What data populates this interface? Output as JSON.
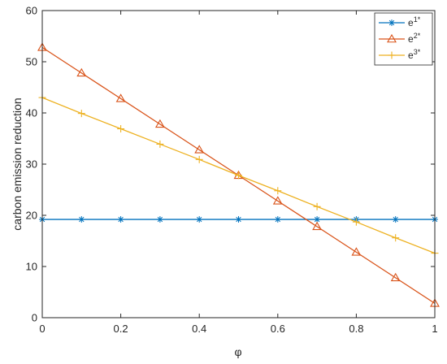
{
  "chart_data": {
    "type": "line",
    "xlabel": "φ",
    "ylabel": "carbon emission reduction",
    "xlim": [
      0,
      1
    ],
    "ylim": [
      0,
      60
    ],
    "xticks": [
      "0",
      "0.2",
      "0.4",
      "0.6",
      "0.8",
      "1"
    ],
    "yticks": [
      "0",
      "10",
      "20",
      "30",
      "40",
      "50",
      "60"
    ],
    "grid": false,
    "legend_position": "top-right",
    "x": [
      0,
      0.1,
      0.2,
      0.3,
      0.4,
      0.5,
      0.6,
      0.7,
      0.8,
      0.9,
      1.0
    ],
    "series": [
      {
        "name": "e1*",
        "name_base": "e",
        "name_sup": "1*",
        "color": "#0072BD",
        "marker": "asterisk",
        "values": [
          19.2,
          19.2,
          19.2,
          19.2,
          19.2,
          19.2,
          19.2,
          19.2,
          19.2,
          19.2,
          19.2
        ]
      },
      {
        "name": "e2*",
        "name_base": "e",
        "name_sup": "2*",
        "color": "#D95319",
        "marker": "triangle",
        "values": [
          52.8,
          47.8,
          42.8,
          37.8,
          32.8,
          27.8,
          22.8,
          17.8,
          12.8,
          7.8,
          2.8
        ]
      },
      {
        "name": "e3*",
        "name_base": "e",
        "name_sup": "3*",
        "color": "#EDB120",
        "marker": "plus",
        "values": [
          43.0,
          39.9,
          36.9,
          33.9,
          30.9,
          27.8,
          24.8,
          21.7,
          18.7,
          15.6,
          12.6
        ]
      }
    ]
  }
}
